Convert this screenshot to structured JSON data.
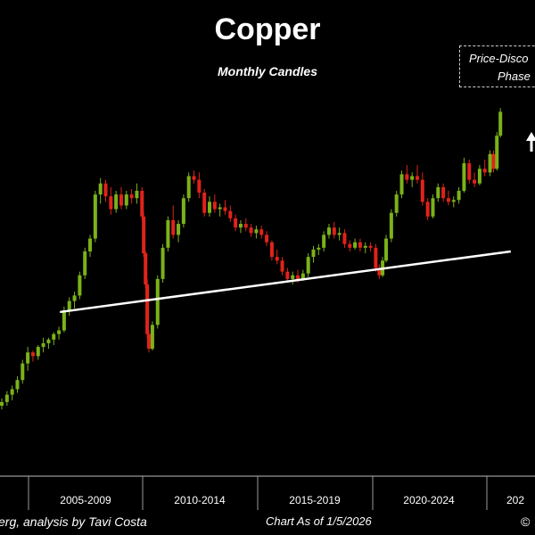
{
  "chart_data": {
    "type": "candlestick",
    "title": "Copper",
    "subtitle": "Monthly Candles",
    "x_tick_labels": [
      "2005-2009",
      "2010-2014",
      "2015-2019",
      "2020-2024",
      "202"
    ],
    "annotation": {
      "line1": "Price-Disco",
      "line2": "Phase"
    },
    "resistance_line": {
      "x": [
        2004.8,
        2026.5
      ],
      "y": [
        1.2,
        1.53
      ]
    },
    "colors": {
      "up": "#7bb21a",
      "down": "#e0231b",
      "trendline": "#ffffff",
      "background": "#000000"
    },
    "series": [
      {
        "name": "",
        "values": [
          [
            2002.0,
            0.69,
            0.73,
            0.67,
            0.71
          ],
          [
            2002.25,
            0.71,
            0.77,
            0.69,
            0.75
          ],
          [
            2002.5,
            0.75,
            0.8,
            0.72,
            0.78
          ],
          [
            2002.75,
            0.78,
            0.85,
            0.76,
            0.83
          ],
          [
            2003.0,
            0.83,
            0.94,
            0.81,
            0.92
          ],
          [
            2003.25,
            0.92,
            1.01,
            0.88,
            0.98
          ],
          [
            2003.5,
            0.98,
            0.99,
            0.93,
            0.96
          ],
          [
            2003.75,
            0.96,
            1.02,
            0.94,
            1.01
          ],
          [
            2004.0,
            1.01,
            1.06,
            0.98,
            1.03
          ],
          [
            2004.25,
            1.03,
            1.06,
            1.0,
            1.05
          ],
          [
            2004.5,
            1.05,
            1.09,
            1.02,
            1.08
          ],
          [
            2004.75,
            1.08,
            1.12,
            1.05,
            1.1
          ],
          [
            2005.0,
            1.1,
            1.23,
            1.09,
            1.21
          ],
          [
            2005.25,
            1.21,
            1.28,
            1.18,
            1.26
          ],
          [
            2005.5,
            1.26,
            1.31,
            1.22,
            1.29
          ],
          [
            2005.75,
            1.29,
            1.42,
            1.27,
            1.4
          ],
          [
            2006.0,
            1.4,
            1.55,
            1.38,
            1.53
          ],
          [
            2006.25,
            1.53,
            1.62,
            1.5,
            1.6
          ],
          [
            2006.5,
            1.6,
            1.86,
            1.58,
            1.84
          ],
          [
            2006.75,
            1.84,
            1.93,
            1.79,
            1.9
          ],
          [
            2007.0,
            1.9,
            1.92,
            1.8,
            1.83
          ],
          [
            2007.25,
            1.83,
            1.88,
            1.73,
            1.76
          ],
          [
            2007.5,
            1.76,
            1.86,
            1.74,
            1.84
          ],
          [
            2007.75,
            1.84,
            1.88,
            1.76,
            1.78
          ],
          [
            2008.0,
            1.78,
            1.86,
            1.76,
            1.84
          ],
          [
            2008.25,
            1.84,
            1.87,
            1.79,
            1.82
          ],
          [
            2008.5,
            1.82,
            1.9,
            1.79,
            1.86
          ],
          [
            2008.75,
            1.86,
            1.88,
            1.7,
            1.72
          ],
          [
            2008.83,
            1.72,
            1.74,
            1.5,
            1.52
          ],
          [
            2008.92,
            1.52,
            1.53,
            1.33,
            1.35
          ],
          [
            2009.0,
            1.35,
            1.38,
            1.06,
            1.08
          ],
          [
            2009.08,
            1.08,
            1.1,
            0.98,
            1.0
          ],
          [
            2009.25,
            1.0,
            1.15,
            0.99,
            1.13
          ],
          [
            2009.5,
            1.13,
            1.4,
            1.11,
            1.38
          ],
          [
            2009.75,
            1.38,
            1.57,
            1.36,
            1.55
          ],
          [
            2010.0,
            1.55,
            1.72,
            1.53,
            1.7
          ],
          [
            2010.25,
            1.7,
            1.78,
            1.6,
            1.62
          ],
          [
            2010.5,
            1.62,
            1.7,
            1.58,
            1.68
          ],
          [
            2010.75,
            1.68,
            1.84,
            1.66,
            1.82
          ],
          [
            2011.0,
            1.82,
            1.96,
            1.8,
            1.94
          ],
          [
            2011.25,
            1.94,
            1.97,
            1.9,
            1.92
          ],
          [
            2011.5,
            1.92,
            1.96,
            1.82,
            1.85
          ],
          [
            2011.75,
            1.85,
            1.87,
            1.72,
            1.74
          ],
          [
            2012.0,
            1.74,
            1.83,
            1.72,
            1.8
          ],
          [
            2012.25,
            1.8,
            1.84,
            1.74,
            1.76
          ],
          [
            2012.5,
            1.76,
            1.79,
            1.72,
            1.77
          ],
          [
            2012.75,
            1.77,
            1.81,
            1.73,
            1.75
          ],
          [
            2013.0,
            1.75,
            1.78,
            1.69,
            1.71
          ],
          [
            2013.25,
            1.71,
            1.73,
            1.64,
            1.66
          ],
          [
            2013.5,
            1.66,
            1.7,
            1.63,
            1.68
          ],
          [
            2013.75,
            1.68,
            1.71,
            1.64,
            1.66
          ],
          [
            2014.0,
            1.66,
            1.68,
            1.61,
            1.63
          ],
          [
            2014.25,
            1.63,
            1.67,
            1.6,
            1.65
          ],
          [
            2014.5,
            1.65,
            1.67,
            1.6,
            1.62
          ],
          [
            2014.75,
            1.62,
            1.64,
            1.56,
            1.58
          ],
          [
            2015.0,
            1.58,
            1.59,
            1.48,
            1.5
          ],
          [
            2015.25,
            1.5,
            1.54,
            1.46,
            1.48
          ],
          [
            2015.5,
            1.48,
            1.5,
            1.4,
            1.42
          ],
          [
            2015.75,
            1.42,
            1.44,
            1.36,
            1.38
          ],
          [
            2016.0,
            1.38,
            1.42,
            1.35,
            1.4
          ],
          [
            2016.25,
            1.4,
            1.43,
            1.36,
            1.38
          ],
          [
            2016.5,
            1.38,
            1.43,
            1.37,
            1.41
          ],
          [
            2016.75,
            1.41,
            1.52,
            1.39,
            1.5
          ],
          [
            2017.0,
            1.5,
            1.56,
            1.47,
            1.54
          ],
          [
            2017.25,
            1.54,
            1.57,
            1.51,
            1.55
          ],
          [
            2017.5,
            1.55,
            1.64,
            1.53,
            1.62
          ],
          [
            2017.75,
            1.62,
            1.68,
            1.6,
            1.66
          ],
          [
            2018.0,
            1.66,
            1.69,
            1.6,
            1.62
          ],
          [
            2018.25,
            1.62,
            1.66,
            1.59,
            1.63
          ],
          [
            2018.5,
            1.63,
            1.65,
            1.55,
            1.57
          ],
          [
            2018.75,
            1.57,
            1.59,
            1.53,
            1.55
          ],
          [
            2019.0,
            1.55,
            1.6,
            1.54,
            1.58
          ],
          [
            2019.25,
            1.58,
            1.6,
            1.53,
            1.55
          ],
          [
            2019.5,
            1.55,
            1.58,
            1.52,
            1.56
          ],
          [
            2019.75,
            1.56,
            1.58,
            1.53,
            1.55
          ],
          [
            2020.0,
            1.55,
            1.57,
            1.42,
            1.44
          ],
          [
            2020.17,
            1.44,
            1.46,
            1.38,
            1.4
          ],
          [
            2020.33,
            1.4,
            1.5,
            1.39,
            1.48
          ],
          [
            2020.5,
            1.48,
            1.62,
            1.47,
            1.6
          ],
          [
            2020.75,
            1.6,
            1.76,
            1.58,
            1.74
          ],
          [
            2021.0,
            1.74,
            1.86,
            1.72,
            1.84
          ],
          [
            2021.25,
            1.84,
            1.97,
            1.82,
            1.95
          ],
          [
            2021.5,
            1.95,
            2.0,
            1.9,
            1.92
          ],
          [
            2021.75,
            1.92,
            1.96,
            1.88,
            1.94
          ],
          [
            2022.0,
            1.94,
            2.0,
            1.9,
            1.92
          ],
          [
            2022.25,
            1.92,
            1.96,
            1.78,
            1.8
          ],
          [
            2022.5,
            1.8,
            1.82,
            1.7,
            1.72
          ],
          [
            2022.75,
            1.72,
            1.84,
            1.71,
            1.82
          ],
          [
            2023.0,
            1.82,
            1.9,
            1.8,
            1.88
          ],
          [
            2023.25,
            1.88,
            1.9,
            1.8,
            1.82
          ],
          [
            2023.5,
            1.82,
            1.86,
            1.78,
            1.8
          ],
          [
            2023.75,
            1.8,
            1.83,
            1.77,
            1.81
          ],
          [
            2024.0,
            1.81,
            1.88,
            1.79,
            1.86
          ],
          [
            2024.25,
            1.86,
            2.04,
            1.85,
            2.01
          ],
          [
            2024.5,
            2.01,
            2.03,
            1.9,
            1.92
          ],
          [
            2024.75,
            1.92,
            1.96,
            1.88,
            1.9
          ],
          [
            2025.0,
            1.9,
            2.0,
            1.89,
            1.98
          ],
          [
            2025.25,
            1.98,
            2.03,
            1.94,
            1.96
          ],
          [
            2025.5,
            1.96,
            2.08,
            1.94,
            2.06
          ],
          [
            2025.67,
            2.06,
            2.08,
            1.96,
            1.98
          ],
          [
            2025.83,
            1.98,
            2.18,
            1.97,
            2.16
          ],
          [
            2026.0,
            2.16,
            2.31,
            2.15,
            2.29
          ]
        ]
      }
    ]
  },
  "footer": {
    "source": "erg, analysis by Tavi Costa",
    "date": "Chart As of 1/5/2026",
    "copyright": "©"
  }
}
